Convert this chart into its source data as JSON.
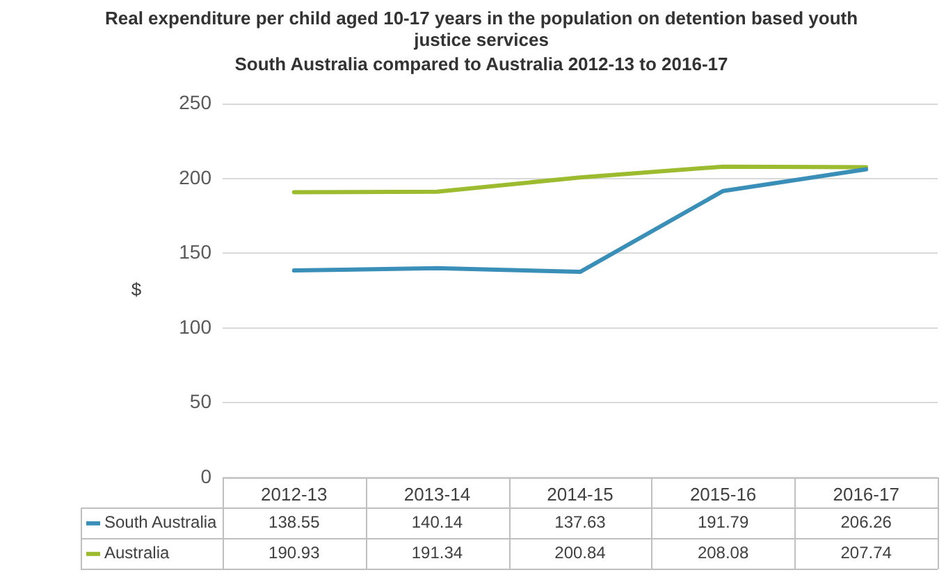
{
  "chart_data": {
    "type": "line",
    "title": "Real expenditure per child aged 10-17 years in the population on detention based youth justice services",
    "subtitle": "South Australia compared to Australia 2012-13 to 2016-17",
    "ylabel": "$",
    "categories": [
      "2012-13",
      "2013-14",
      "2014-15",
      "2015-16",
      "2016-17"
    ],
    "series": [
      {
        "name": "South Australia",
        "color": "#3a8fb9",
        "values": [
          138.55,
          140.14,
          137.63,
          191.79,
          206.26
        ]
      },
      {
        "name": "Australia",
        "color": "#9cbb2e",
        "values": [
          190.93,
          191.34,
          200.84,
          208.08,
          207.74
        ]
      }
    ],
    "ylim": [
      0,
      250
    ],
    "yticks": [
      0,
      50,
      100,
      150,
      200,
      250
    ],
    "grid": "y",
    "legend": "bottom",
    "marker": "none",
    "line_style": "solid",
    "data_labels": true
  }
}
